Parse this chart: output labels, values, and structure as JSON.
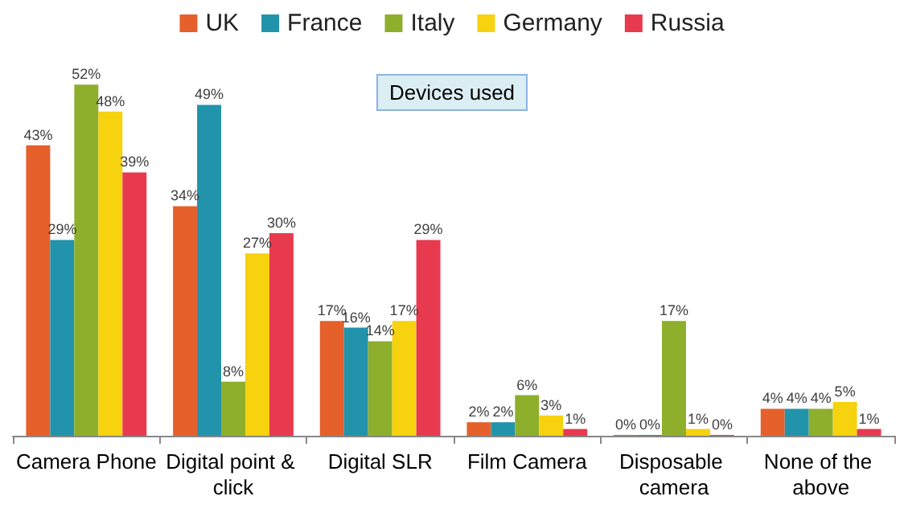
{
  "chart_data": {
    "type": "bar",
    "title": "Devices used",
    "categories": [
      "Camera Phone",
      "Digital point & click",
      "Digital SLR",
      "Film Camera",
      "Disposable camera",
      "None of the above"
    ],
    "series": [
      {
        "name": "UK",
        "color": "#e5602b",
        "values": [
          43,
          34,
          17,
          2,
          0,
          4
        ],
        "value_labels": [
          "43%",
          "34%",
          "17%",
          "2%",
          "0%",
          "4%"
        ]
      },
      {
        "name": "France",
        "color": "#2193ab",
        "values": [
          29,
          49,
          16,
          2,
          0,
          4
        ],
        "value_labels": [
          "29%",
          "49%",
          "16%",
          "2%",
          "0%",
          "4%"
        ]
      },
      {
        "name": "Italy",
        "color": "#8eaf2c",
        "values": [
          52,
          8,
          14,
          6,
          17,
          4
        ],
        "value_labels": [
          "52%",
          "8%",
          "14%",
          "6%",
          "17%",
          "4%"
        ]
      },
      {
        "name": "Germany",
        "color": "#f6d20f",
        "values": [
          48,
          27,
          17,
          3,
          1,
          5
        ],
        "value_labels": [
          "48%",
          "27%",
          "17%",
          "3%",
          "1%",
          "5%"
        ]
      },
      {
        "name": "Russia",
        "color": "#e83a4f",
        "values": [
          39,
          30,
          29,
          1,
          0,
          1
        ],
        "value_labels": [
          "39%",
          "30%",
          "29%",
          "1%",
          "0%",
          "1%"
        ]
      }
    ],
    "legend": "top"
  }
}
